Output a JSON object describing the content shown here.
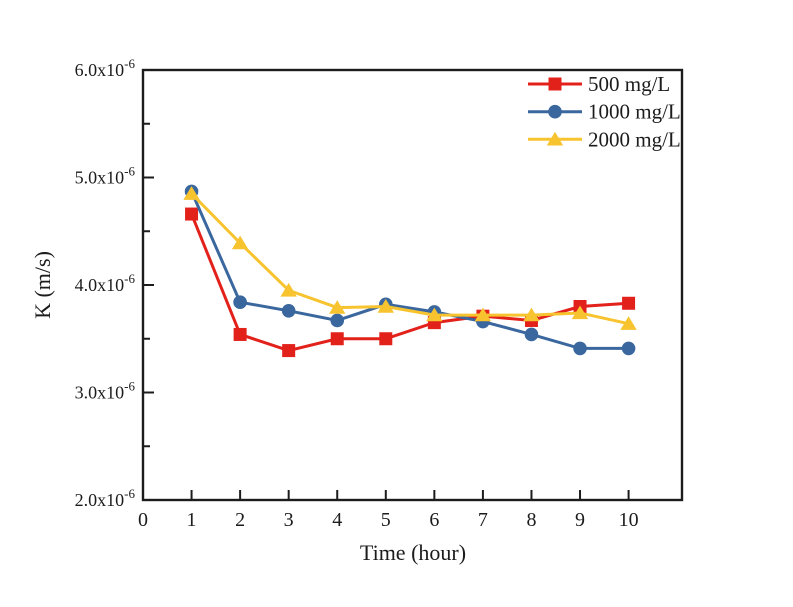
{
  "chart_data": {
    "type": "line",
    "title": "",
    "xlabel": "Time (hour)",
    "ylabel": "K (m/s)",
    "x": [
      1,
      2,
      3,
      4,
      5,
      6,
      7,
      8,
      9,
      10
    ],
    "y_unit_scale": "1e-6",
    "series": [
      {
        "name": "500 mg/L",
        "marker": "square",
        "color": "#e3211b",
        "values": [
          4.66,
          3.54,
          3.39,
          3.5,
          3.5,
          3.65,
          3.71,
          3.67,
          3.8,
          3.83
        ]
      },
      {
        "name": "1000 mg/L",
        "marker": "circle",
        "color": "#3a679e",
        "values": [
          4.87,
          3.84,
          3.76,
          3.67,
          3.82,
          3.75,
          3.66,
          3.54,
          3.41,
          3.41
        ]
      },
      {
        "name": "2000 mg/L",
        "marker": "triangle",
        "color": "#f7c32f",
        "values": [
          4.85,
          4.39,
          3.95,
          3.79,
          3.8,
          3.72,
          3.72,
          3.72,
          3.74,
          3.64
        ]
      }
    ],
    "xlim": [
      0,
      11.1
    ],
    "ylim": [
      2.0,
      6.0
    ],
    "x_ticks": [
      0,
      1,
      2,
      3,
      4,
      5,
      6,
      7,
      8,
      9,
      10
    ],
    "y_ticks": [
      2.0,
      3.0,
      4.0,
      5.0,
      6.0
    ],
    "y_minor_step": 0.5,
    "y_tick_mantissa_format": "#.0",
    "y_tick_suffix": "x10",
    "y_tick_exponent": "-6",
    "grid": false,
    "legend_position": "top-right",
    "axis_color": "#1c1c1c",
    "background_color": "#ffffff"
  }
}
